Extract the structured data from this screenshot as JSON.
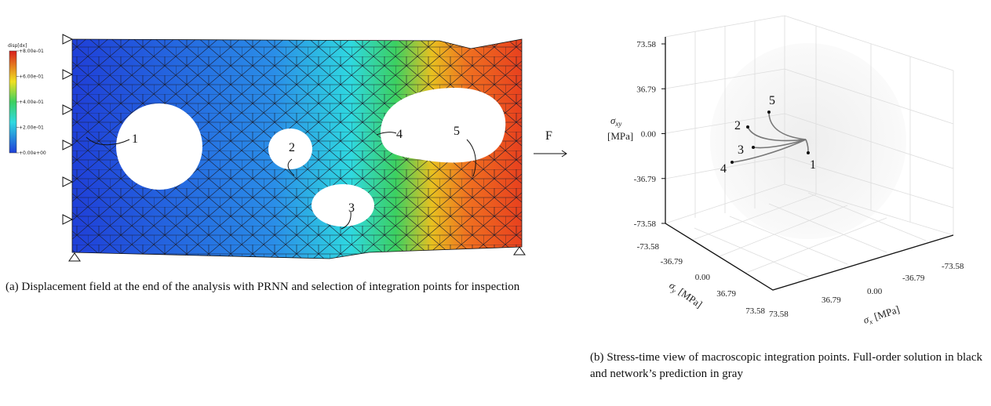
{
  "figure_a": {
    "colorbar": {
      "title": "disp[dx]",
      "labels": [
        "+8.00e-01",
        "+6.00e-01",
        "+4.00e-01",
        "+2.00e-01",
        "+0.00e+00"
      ]
    },
    "points": [
      "1",
      "2",
      "3",
      "4",
      "5"
    ],
    "force": "F",
    "caption": "(a) Displacement field at the end of the analysis with PRNN and selection of integration points for inspection"
  },
  "figure_b": {
    "z_axis": {
      "symbol": "σ",
      "subscript": "xy",
      "unit": "[MPa]",
      "ticks": [
        "73.58",
        "36.79",
        "0.00",
        "-36.79",
        "-73.58"
      ]
    },
    "y_axis": {
      "symbol": "σ",
      "subscript": "y",
      "unit": "[MPa]",
      "ticks": [
        "-73.58",
        "-36.79",
        "0.00",
        "36.79",
        "73.58"
      ]
    },
    "x_axis": {
      "symbol": "σ",
      "subscript": "x",
      "unit": "[MPa]",
      "ticks": [
        "73.58",
        "36.79",
        "0.00",
        "-36.79",
        "-73.58"
      ]
    },
    "curves": [
      "1",
      "2",
      "3",
      "4",
      "5"
    ],
    "caption": "(b) Stress-time view of macroscopic integration points. Full-order solution in black and network’s prediction in gray"
  }
}
